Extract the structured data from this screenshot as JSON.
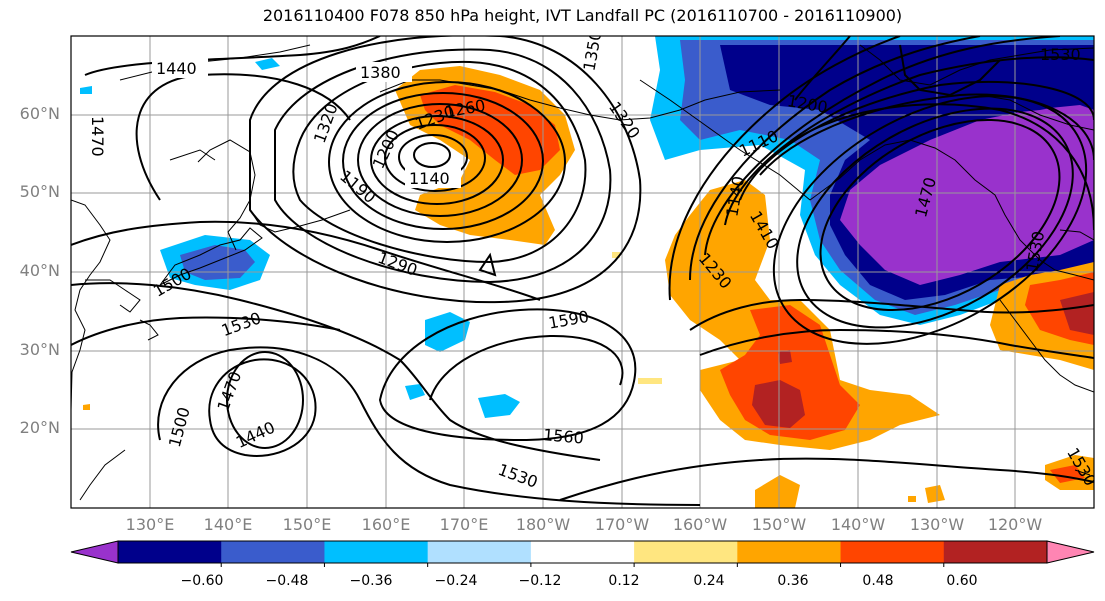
{
  "title": "2016110400 F078 850 hPa height, IVT Landfall PC (2016110700 - 2016110900)",
  "lat_labels": [
    "60°N",
    "50°N",
    "40°N",
    "30°N",
    "20°N"
  ],
  "lon_labels": [
    "130°E",
    "140°E",
    "150°E",
    "160°E",
    "170°E",
    "180°W",
    "170°W",
    "160°W",
    "150°W",
    "140°W",
    "130°W",
    "120°W"
  ],
  "contour_labels": [
    "1440",
    "1380",
    "1350",
    "1320",
    "1200",
    "1230",
    "1260",
    "1140",
    "1190",
    "1470",
    "1500",
    "1530",
    "1470",
    "1440",
    "1500",
    "1590",
    "1560",
    "1530",
    "1320",
    "1290",
    "1110",
    "1200",
    "1140",
    "1410",
    "1230",
    "1470",
    "1530",
    "1530",
    "1530"
  ],
  "colorbar": {
    "tick_labels": [
      "−0.60",
      "−0.48",
      "−0.36",
      "−0.24",
      "−0.12",
      "0.12",
      "0.24",
      "0.36",
      "0.48",
      "0.60"
    ],
    "colors": [
      "#9932cc",
      "#00008b",
      "#3a5ccc",
      "#00bfff",
      "#b0e0ff",
      "#ffffff",
      "#ffe680",
      "#ffa500",
      "#ff4500",
      "#b22222",
      "#ff85b3"
    ]
  }
}
